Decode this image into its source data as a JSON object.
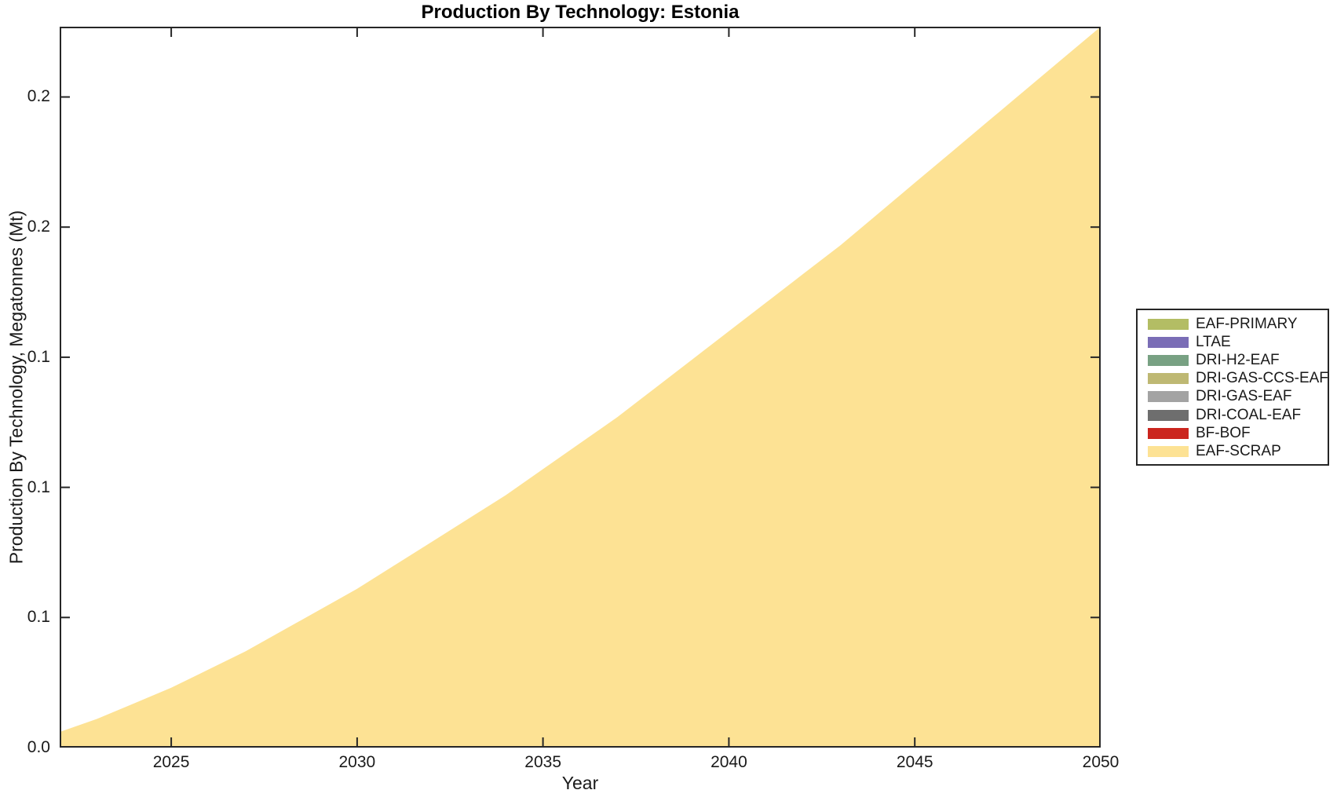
{
  "chart": {
    "title": "Production By Technology: Estonia",
    "xlabel": "Year",
    "ylabel": "Production By Technology, Megatonnes (Mt)"
  },
  "chart_data": {
    "type": "area",
    "stacked": true,
    "title": "Production By Technology: Estonia",
    "xlabel": "Year",
    "ylabel": "Production By Technology, Megatonnes (Mt)",
    "grid": false,
    "legend_position": "right-outside",
    "xlim": [
      2022,
      2050
    ],
    "ylim": [
      0,
      0.277
    ],
    "xticks": {
      "values": [
        2025,
        2030,
        2035,
        2040,
        2045,
        2050
      ],
      "labels": [
        "2025",
        "2030",
        "2035",
        "2040",
        "2045",
        "2050"
      ]
    },
    "yticks": {
      "values": [
        0,
        0.05,
        0.1,
        0.15,
        0.2,
        0.25
      ],
      "labels": [
        "0.0",
        "0.1",
        "0.1",
        "0.1",
        "0.2",
        "0.2"
      ]
    },
    "x": [
      2022,
      2023,
      2024,
      2025,
      2026,
      2027,
      2028,
      2029,
      2030,
      2031,
      2032,
      2033,
      2034,
      2035,
      2036,
      2037,
      2038,
      2039,
      2040,
      2041,
      2042,
      2043,
      2044,
      2045,
      2046,
      2047,
      2048,
      2049,
      2050
    ],
    "series": [
      {
        "name": "BF-BOF",
        "color": "#cb251e",
        "values": [
          0,
          0,
          0,
          0,
          0,
          0,
          0,
          0,
          0,
          0,
          0,
          0,
          0,
          0,
          0,
          0,
          0,
          0,
          0,
          0,
          0,
          0,
          0,
          0,
          0,
          0,
          0,
          0,
          0
        ]
      },
      {
        "name": "DRI-COAL-EAF",
        "color": "#6e6e6e",
        "values": [
          0,
          0,
          0,
          0,
          0,
          0,
          0,
          0,
          0,
          0,
          0,
          0,
          0,
          0,
          0,
          0,
          0,
          0,
          0,
          0,
          0,
          0,
          0,
          0,
          0,
          0,
          0,
          0,
          0
        ]
      },
      {
        "name": "DRI-GAS-EAF",
        "color": "#a3a3a3",
        "values": [
          0,
          0,
          0,
          0,
          0,
          0,
          0,
          0,
          0,
          0,
          0,
          0,
          0,
          0,
          0,
          0,
          0,
          0,
          0,
          0,
          0,
          0,
          0,
          0,
          0,
          0,
          0,
          0,
          0
        ]
      },
      {
        "name": "DRI-GAS-CCS-EAF",
        "color": "#beb873",
        "values": [
          0,
          0,
          0,
          0,
          0,
          0,
          0,
          0,
          0,
          0,
          0,
          0,
          0,
          0,
          0,
          0,
          0,
          0,
          0,
          0,
          0,
          0,
          0,
          0,
          0,
          0,
          0,
          0,
          0
        ]
      },
      {
        "name": "DRI-H2-EAF",
        "color": "#78a183",
        "values": [
          0,
          0,
          0,
          0,
          0,
          0,
          0,
          0,
          0,
          0,
          0,
          0,
          0,
          0,
          0,
          0,
          0,
          0,
          0,
          0,
          0,
          0,
          0,
          0,
          0,
          0,
          0,
          0,
          0
        ]
      },
      {
        "name": "LTAE",
        "color": "#7a6db6",
        "values": [
          0,
          0,
          0,
          0,
          0,
          0,
          0,
          0,
          0,
          0,
          0,
          0,
          0,
          0,
          0,
          0,
          0,
          0,
          0,
          0,
          0,
          0,
          0,
          0,
          0,
          0,
          0,
          0,
          0
        ]
      },
      {
        "name": "EAF-PRIMARY",
        "color": "#b3bd64",
        "values": [
          0,
          0,
          0,
          0,
          0,
          0,
          0,
          0,
          0,
          0,
          0,
          0,
          0,
          0,
          0,
          0,
          0,
          0,
          0,
          0,
          0,
          0,
          0,
          0,
          0,
          0,
          0,
          0,
          0
        ]
      },
      {
        "name": "EAF-SCRAP",
        "color": "#fde294",
        "values": [
          0.006,
          0.011,
          0.017,
          0.023,
          0.03,
          0.037,
          0.045,
          0.053,
          0.061,
          0.07,
          0.079,
          0.088,
          0.097,
          0.107,
          0.117,
          0.127,
          0.138,
          0.149,
          0.16,
          0.171,
          0.182,
          0.193,
          0.205,
          0.217,
          0.229,
          0.241,
          0.253,
          0.265,
          0.277
        ]
      }
    ]
  },
  "legend": {
    "items": [
      {
        "label": "EAF-PRIMARY",
        "color": "#b3bd64"
      },
      {
        "label": "LTAE",
        "color": "#7a6db6"
      },
      {
        "label": "DRI-H2-EAF",
        "color": "#78a183"
      },
      {
        "label": "DRI-GAS-CCS-EAF",
        "color": "#beb873"
      },
      {
        "label": "DRI-GAS-EAF",
        "color": "#a3a3a3"
      },
      {
        "label": "DRI-COAL-EAF",
        "color": "#6e6e6e"
      },
      {
        "label": "BF-BOF",
        "color": "#cb251e"
      },
      {
        "label": "EAF-SCRAP",
        "color": "#fde294"
      }
    ]
  },
  "style": {
    "axis_color": "#262626",
    "text_color": "#1a1a1a",
    "background": "#ffffff"
  }
}
